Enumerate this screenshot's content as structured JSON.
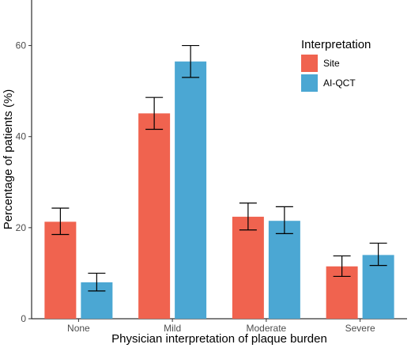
{
  "chart_data": {
    "type": "bar",
    "categories": [
      "None",
      "Mild",
      "Moderate",
      "Severe"
    ],
    "series": [
      {
        "name": "Site",
        "color": "#F0634F",
        "values": [
          21.3,
          45.1,
          22.4,
          11.5
        ],
        "ci_low": [
          18.5,
          41.6,
          19.5,
          9.3
        ],
        "ci_high": [
          24.3,
          48.6,
          25.4,
          13.8
        ]
      },
      {
        "name": "AI-QCT",
        "color": "#4BA7D3",
        "values": [
          8.0,
          56.5,
          21.5,
          14.0
        ],
        "ci_low": [
          6.1,
          53.0,
          18.7,
          11.7
        ],
        "ci_high": [
          10.0,
          60.0,
          24.6,
          16.6
        ]
      }
    ],
    "xlabel": "Physician interpretation of plaque burden",
    "ylabel": "Percentage of patients (%)",
    "ylim": [
      0,
      70
    ],
    "yticks": [
      0,
      20,
      40,
      60
    ],
    "legend": {
      "title": "Interpretation",
      "position": "top-right"
    },
    "grid": false
  }
}
